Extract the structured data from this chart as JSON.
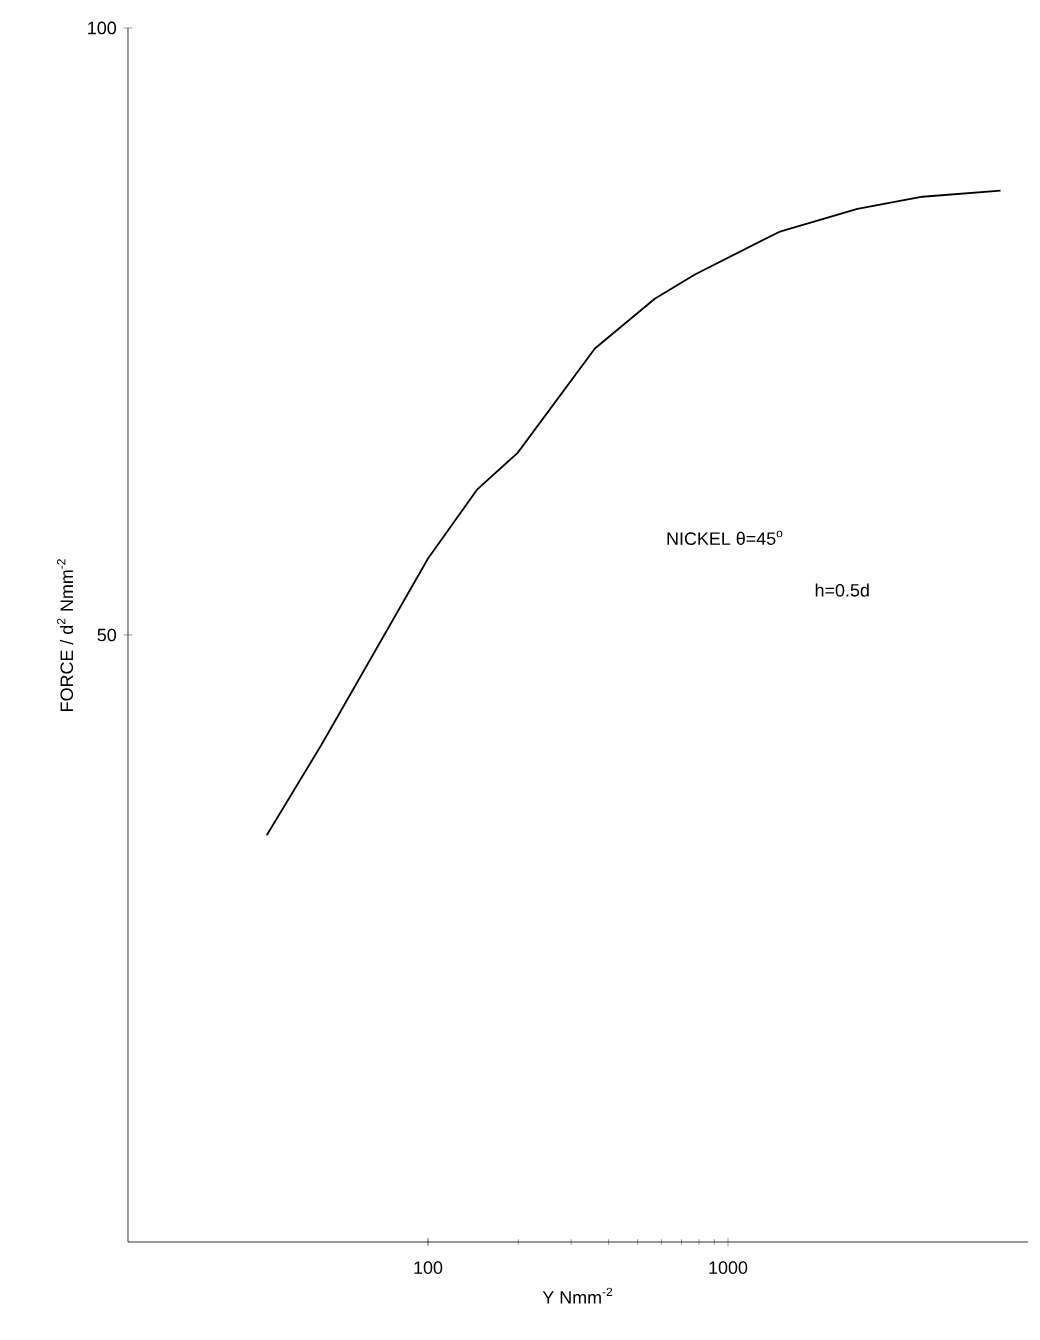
{
  "chart_data": {
    "type": "line",
    "xlabel": "Y  Nmm$^{-2}$",
    "ylabel": "FORCE / d$^{2}$  Nmm$^{-2}$",
    "annotations": [
      "NICKEL  θ=45$^{o}$",
      "h=0.5d"
    ],
    "x": [
      29,
      44,
      59,
      100,
      146,
      199,
      360,
      570,
      776,
      1480,
      2700,
      4450,
      8100
    ],
    "series": [
      {
        "color": "#000000",
        "values": [
          33.5,
          40.9,
          46.4,
          56.3,
          62,
          65,
          73.6,
          77.7,
          79.7,
          83.2,
          85.1,
          86.1,
          86.6
        ]
      }
    ],
    "log": "x",
    "xlim": [
      10,
      10000
    ],
    "ylim": [
      0,
      100
    ],
    "xticks": [
      100,
      1000
    ],
    "yticks": [
      50,
      100
    ],
    "marker": "none",
    "line_style": "solid"
  }
}
